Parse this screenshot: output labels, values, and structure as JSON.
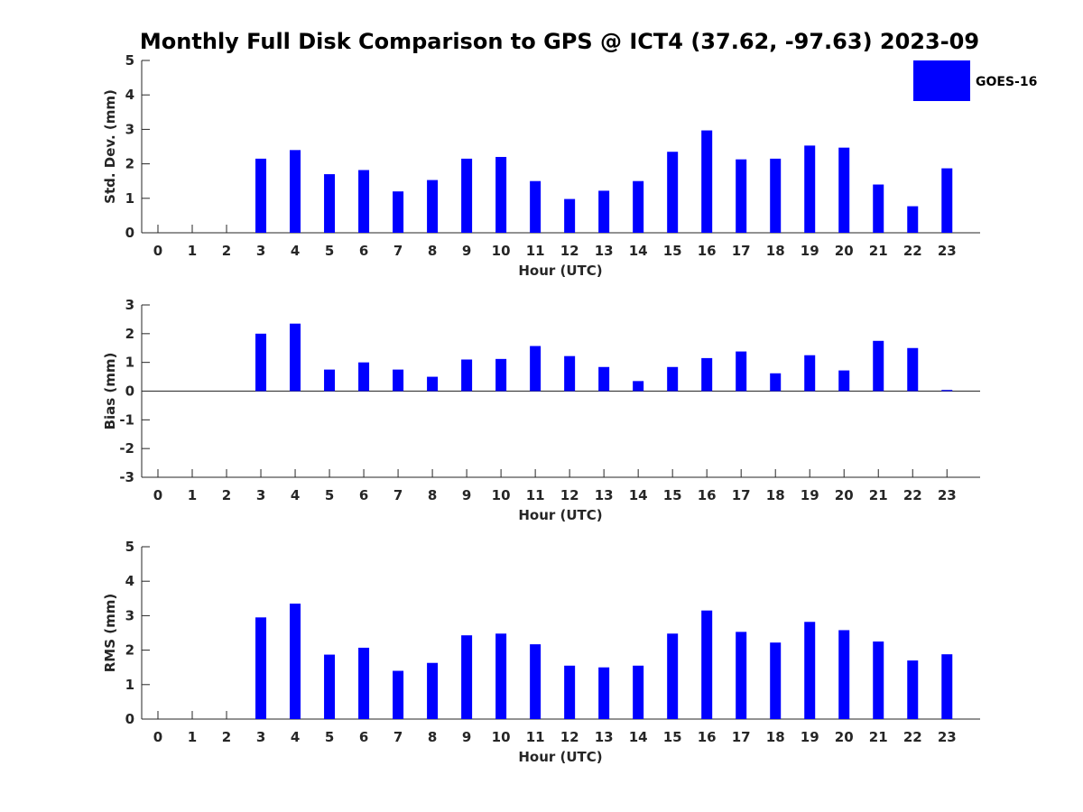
{
  "title": "Monthly Full Disk Comparison to GPS @ ICT4 (37.62, -97.63) 2023-09",
  "legend": {
    "label": "GOES-16",
    "color": "#0000ff",
    "placement": "top-right"
  },
  "chart_data": [
    {
      "type": "bar",
      "xlabel": "Hour (UTC)",
      "ylabel": "Std. Dev. (mm)",
      "ylim": [
        0,
        5
      ],
      "yticks": [
        "0",
        "1",
        "2",
        "3",
        "4",
        "5"
      ],
      "categories": [
        "0",
        "1",
        "2",
        "3",
        "4",
        "5",
        "6",
        "7",
        "8",
        "9",
        "10",
        "11",
        "12",
        "13",
        "14",
        "15",
        "16",
        "17",
        "18",
        "19",
        "20",
        "21",
        "22",
        "23"
      ],
      "series": [
        {
          "name": "GOES-16",
          "values": [
            null,
            null,
            null,
            2.15,
            2.4,
            1.7,
            1.82,
            1.2,
            1.53,
            2.15,
            2.2,
            1.5,
            0.98,
            1.22,
            1.5,
            2.35,
            2.97,
            2.13,
            2.15,
            2.53,
            2.47,
            1.4,
            0.77,
            1.87
          ]
        }
      ],
      "grid": false
    },
    {
      "type": "bar",
      "xlabel": "Hour (UTC)",
      "ylabel": "Bias (mm)",
      "ylim": [
        -3,
        3
      ],
      "yticks": [
        "-3",
        "-2",
        "-1",
        "0",
        "1",
        "2",
        "3"
      ],
      "categories": [
        "0",
        "1",
        "2",
        "3",
        "4",
        "5",
        "6",
        "7",
        "8",
        "9",
        "10",
        "11",
        "12",
        "13",
        "14",
        "15",
        "16",
        "17",
        "18",
        "19",
        "20",
        "21",
        "22",
        "23"
      ],
      "series": [
        {
          "name": "GOES-16",
          "values": [
            null,
            null,
            null,
            2.0,
            2.35,
            0.75,
            1.0,
            0.75,
            0.5,
            1.1,
            1.12,
            1.57,
            1.22,
            0.84,
            0.35,
            0.84,
            1.15,
            1.38,
            0.62,
            1.25,
            0.72,
            1.75,
            1.5,
            0.04
          ]
        }
      ],
      "grid": false
    },
    {
      "type": "bar",
      "xlabel": "Hour (UTC)",
      "ylabel": "RMS (mm)",
      "ylim": [
        0,
        5
      ],
      "yticks": [
        "0",
        "1",
        "2",
        "3",
        "4",
        "5"
      ],
      "categories": [
        "0",
        "1",
        "2",
        "3",
        "4",
        "5",
        "6",
        "7",
        "8",
        "9",
        "10",
        "11",
        "12",
        "13",
        "14",
        "15",
        "16",
        "17",
        "18",
        "19",
        "20",
        "21",
        "22",
        "23"
      ],
      "series": [
        {
          "name": "GOES-16",
          "values": [
            null,
            null,
            null,
            2.95,
            3.35,
            1.87,
            2.07,
            1.4,
            1.63,
            2.43,
            2.48,
            2.17,
            1.55,
            1.5,
            1.55,
            2.48,
            3.15,
            2.53,
            2.22,
            2.82,
            2.58,
            2.25,
            1.7,
            1.88
          ]
        }
      ],
      "grid": false
    }
  ]
}
